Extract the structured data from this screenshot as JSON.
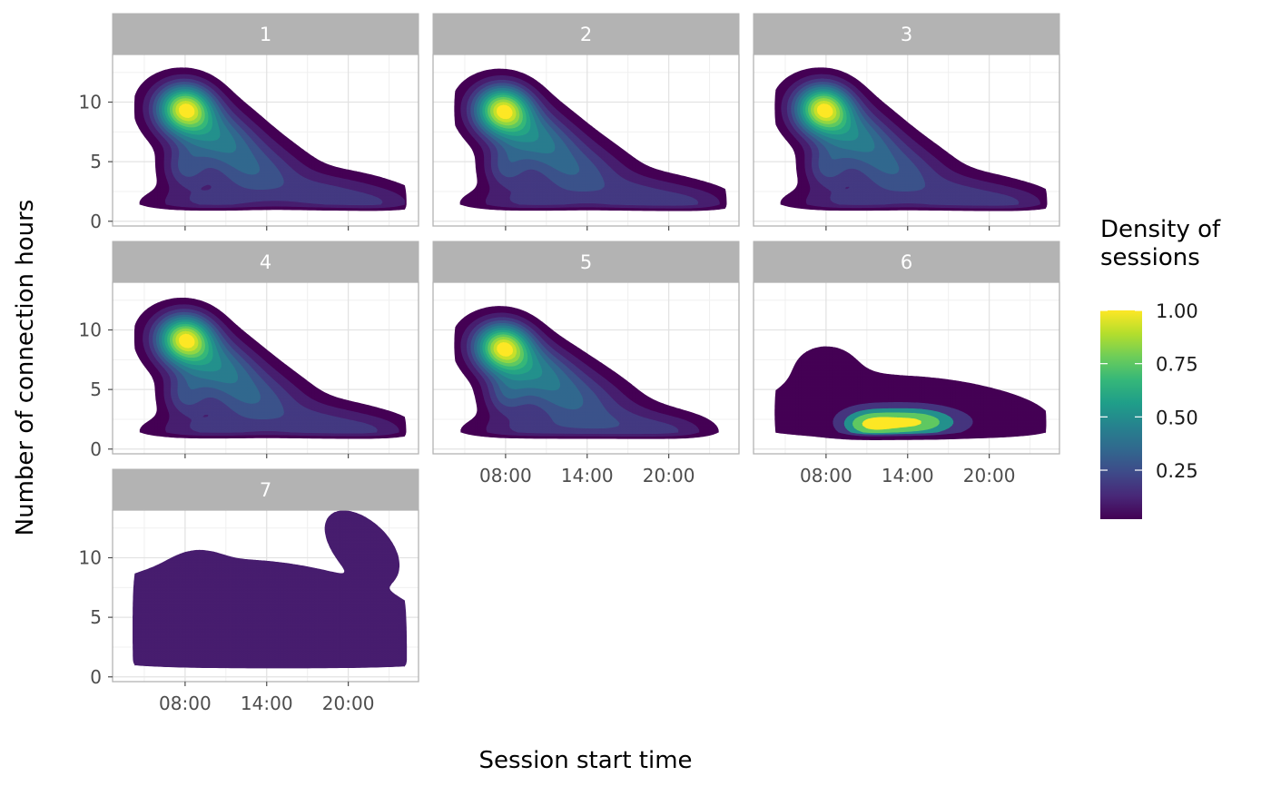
{
  "chart_data": {
    "type": "contour-density-facets",
    "xlabel": "Session start time",
    "ylabel": "Number of connection hours",
    "x_ticks": [
      "08:00",
      "14:00",
      "20:00"
    ],
    "y_ticks": [
      "0",
      "5",
      "10"
    ],
    "xlim": [
      "02:40",
      "25:10"
    ],
    "ylim": [
      -0.4,
      14.0
    ],
    "grid": true,
    "legend": {
      "title_lines": [
        "Density of",
        "sessions"
      ],
      "placement": "right",
      "ticks": [
        {
          "value": 1.0,
          "label": "1.00"
        },
        {
          "value": 0.75,
          "label": "0.75"
        },
        {
          "value": 0.5,
          "label": "0.50"
        },
        {
          "value": 0.25,
          "label": "0.25"
        }
      ],
      "range": [
        0.02,
        1.0
      ],
      "palette": [
        "#440154",
        "#482878",
        "#3E4A89",
        "#31688E",
        "#26828E",
        "#1F9E89",
        "#35B779",
        "#6DCD59",
        "#B4DE2C",
        "#FDE725"
      ]
    },
    "panels": [
      {
        "label": "1",
        "peak": {
          "x": 8.0,
          "y": 9.5
        },
        "secondary": {
          "x": 18.5,
          "y": 2.2
        }
      },
      {
        "label": "2",
        "peak": {
          "x": 7.8,
          "y": 9.4
        },
        "secondary": {
          "x": 18.0,
          "y": 2.0
        }
      },
      {
        "label": "3",
        "peak": {
          "x": 7.8,
          "y": 9.5
        },
        "secondary": {
          "x": 18.0,
          "y": 2.0
        }
      },
      {
        "label": "4",
        "peak": {
          "x": 8.0,
          "y": 9.3
        },
        "secondary": {
          "x": 18.0,
          "y": 2.0
        }
      },
      {
        "label": "5",
        "peak": {
          "x": 7.8,
          "y": 8.6
        },
        "secondary": {
          "x": 16.5,
          "y": 1.8
        }
      },
      {
        "label": "6",
        "peak": {
          "x": 14.5,
          "y": 2.2
        },
        "secondary": {
          "x": 11.0,
          "y": 2.0
        }
      },
      {
        "label": "7",
        "peak": {
          "x": 14.0,
          "y": 3.0
        },
        "secondary": {
          "x": 21.0,
          "y": 11.0
        }
      }
    ]
  }
}
